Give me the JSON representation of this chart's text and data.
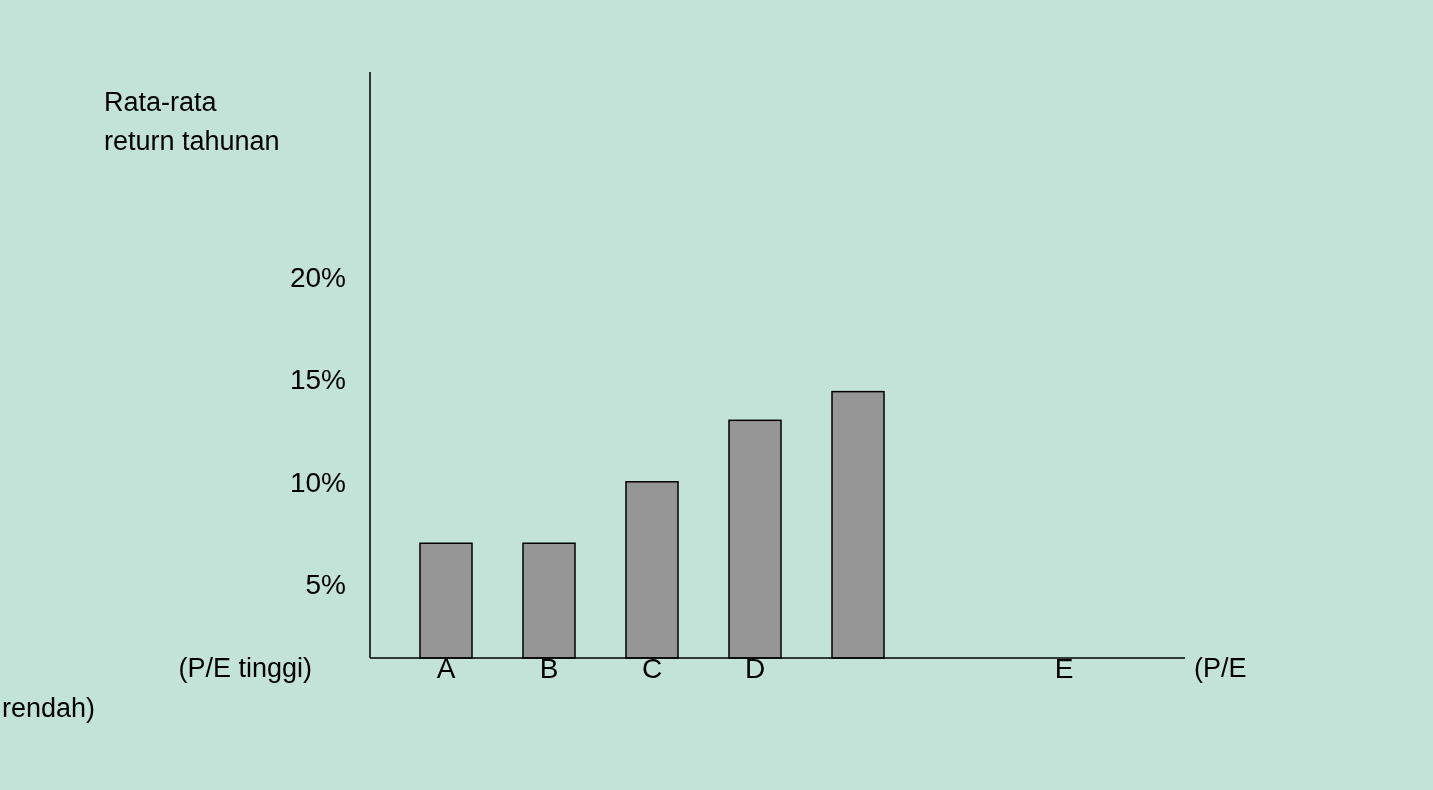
{
  "chart_data": {
    "type": "bar",
    "ylabel": "Rata-rata return tahunan",
    "categories": [
      "A",
      "B",
      "C",
      "D",
      null,
      null,
      "E"
    ],
    "values": [
      7,
      7,
      10,
      13,
      14.4,
      null,
      null
    ],
    "color": "#969696",
    "ylim": [
      1.4,
      30
    ],
    "yticks": [
      {
        "value": 5,
        "label": "5%"
      },
      {
        "value": 10,
        "label": "10%"
      },
      {
        "value": 15,
        "label": "15%"
      },
      {
        "value": 20,
        "label": "20%"
      }
    ],
    "annotations": [
      "(P/E tinggi)",
      "(P/E rendah)"
    ]
  }
}
